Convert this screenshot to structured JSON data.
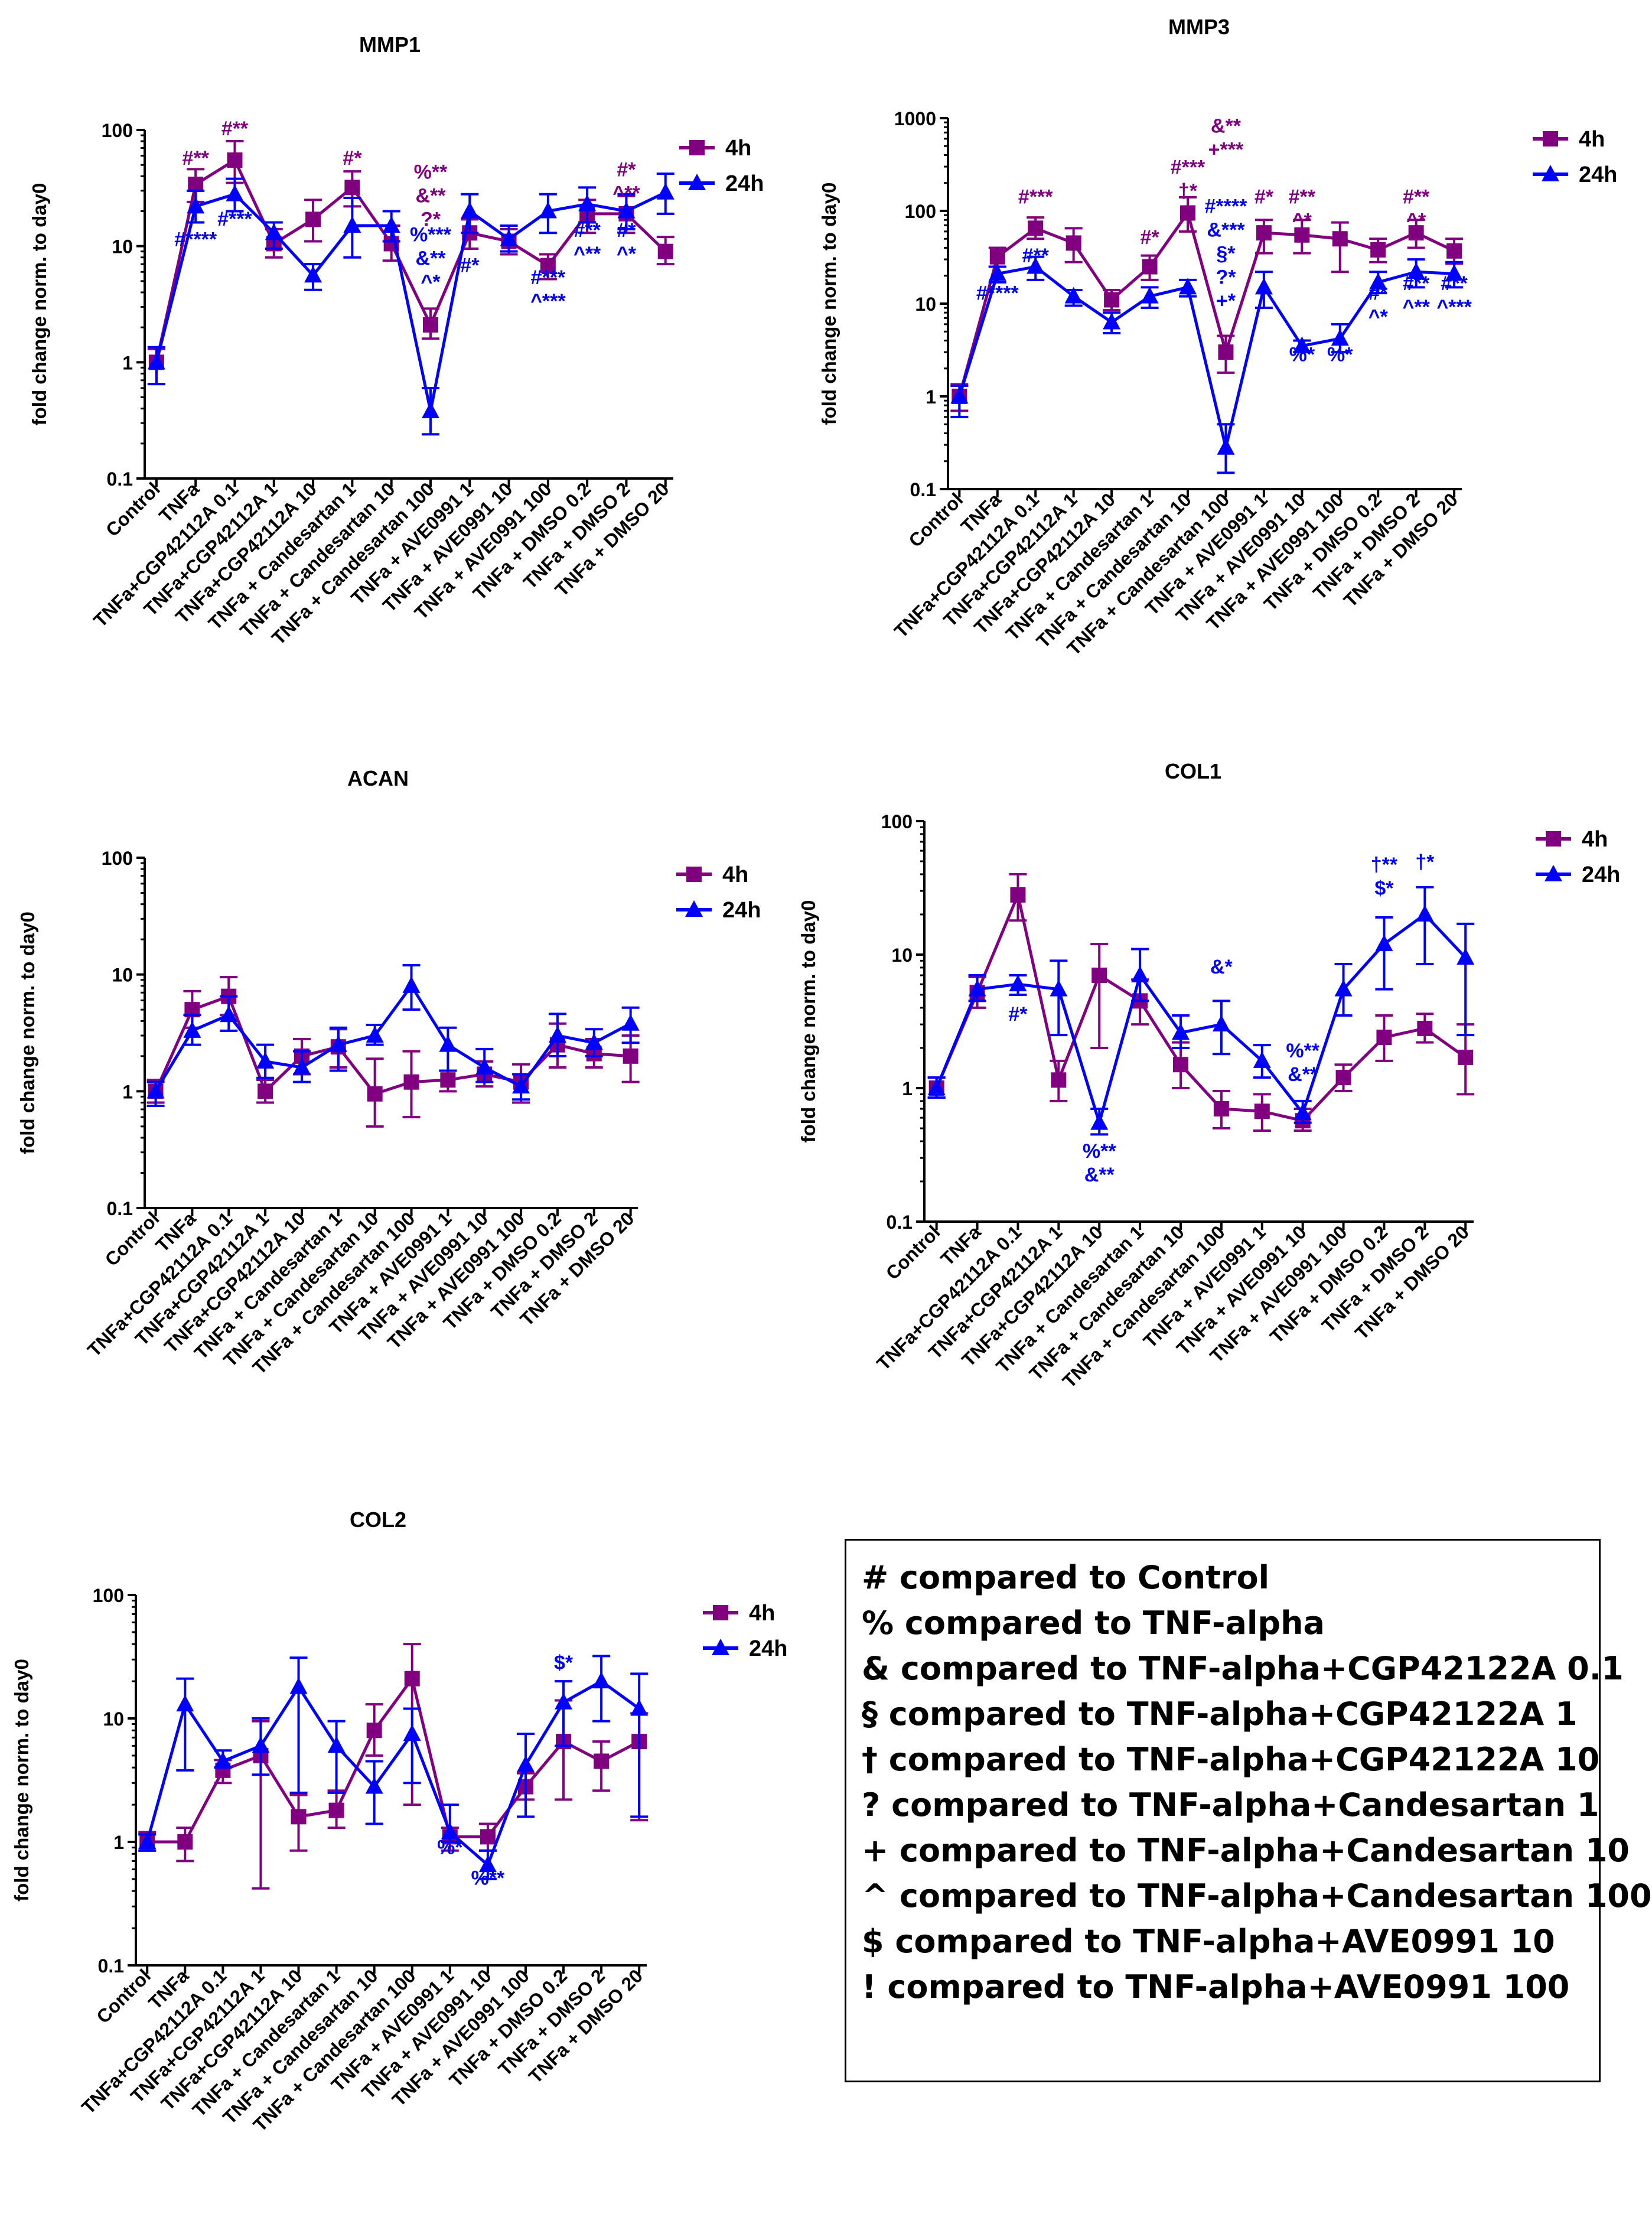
{
  "chart_data": [
    {
      "id": "mmp1",
      "type": "line",
      "title": "MMP1",
      "ylabel": "fold change norm. to day0",
      "yscale": "log",
      "ylim": [
        0.1,
        100
      ],
      "yticks": [
        "0.1",
        "1",
        "10",
        "100"
      ],
      "categories": [
        "Control",
        "TNFa",
        "TNFa+CGP42112A 0.1",
        "TNFa+CGP42112A 1",
        "TNFa+CGP42112A 10",
        "TNFa + Candesartan 1",
        "TNFa + Candesartan 10",
        "TNFa + Candesartan 100",
        "TNFa + AVE0991 1",
        "TNFa + AVE0991 10",
        "TNFa + AVE0991 100",
        "TNFa + DMSO 0.2",
        "TNFa + DMSO 2",
        "TNFa + DMSO 20"
      ],
      "legend": [
        "4h",
        "24h"
      ],
      "series": [
        {
          "name": "4h",
          "color": "#800080",
          "marker": "square",
          "values": [
            1.0,
            34,
            55,
            10.5,
            17,
            32,
            10.5,
            2.1,
            13,
            11,
            6.8,
            19,
            19,
            9
          ],
          "lower": [
            0.65,
            24,
            35,
            8,
            11,
            22,
            7.5,
            1.6,
            9.5,
            8.5,
            5.2,
            13,
            13,
            7
          ],
          "upper": [
            1.3,
            46,
            80,
            14,
            25,
            44,
            15,
            2.9,
            17,
            14,
            8.5,
            25,
            27,
            12
          ]
        },
        {
          "name": "24h",
          "color": "#0000ff",
          "marker": "triangle",
          "values": [
            1.0,
            22,
            28,
            13,
            5.6,
            15,
            15,
            0.38,
            20,
            11.5,
            20,
            23,
            20,
            29
          ],
          "lower": [
            0.65,
            16,
            20,
            9.5,
            4.2,
            8,
            11,
            0.24,
            13,
            9,
            13,
            16,
            14,
            19
          ],
          "upper": [
            1.35,
            30,
            38,
            16,
            7,
            26,
            20,
            0.6,
            28,
            15,
            28,
            32,
            28,
            42
          ]
        }
      ],
      "annotations": [
        {
          "cat": 1,
          "y": 50,
          "text": "#**",
          "color": "#800080"
        },
        {
          "cat": 2,
          "y": 90,
          "text": "#**",
          "color": "#800080"
        },
        {
          "cat": 2,
          "y": 15,
          "text": "#***",
          "color": "#0000ff"
        },
        {
          "cat": 1,
          "y": 10,
          "text": "#****",
          "color": "#0000ff"
        },
        {
          "cat": 5,
          "y": 50,
          "text": "#*",
          "color": "#800080"
        },
        {
          "cat": 7,
          "lines": [
            "%**",
            "&**",
            "?*"
          ],
          "y": 38,
          "color": "#800080"
        },
        {
          "cat": 7,
          "lines": [
            "%***",
            "&**",
            "^*"
          ],
          "y": 11,
          "color": "#0000ff"
        },
        {
          "cat": 8,
          "y": 6,
          "text": "#*",
          "color": "#0000ff"
        },
        {
          "cat": 10,
          "lines": [
            "#***",
            "^***"
          ],
          "y": 4.7,
          "color": "#0000ff"
        },
        {
          "cat": 11,
          "lines": [
            "#**",
            "^**"
          ],
          "y": 12,
          "color": "#0000ff"
        },
        {
          "cat": 12,
          "lines": [
            "#*",
            "^**"
          ],
          "y": 40,
          "color": "#800080"
        },
        {
          "cat": 12,
          "lines": [
            "#*",
            "^*"
          ],
          "y": 12,
          "color": "#0000ff"
        }
      ]
    },
    {
      "id": "mmp3",
      "type": "line",
      "title": "MMP3",
      "ylabel": "fold change norm. to day0",
      "yscale": "log",
      "ylim": [
        0.1,
        1000
      ],
      "yticks": [
        "0.1",
        "1",
        "10",
        "100",
        "1000"
      ],
      "categories": [
        "Control",
        "TNFa",
        "TNFa+CGP42112A 0.1",
        "TNFa+CGP42112A 1",
        "TNFa+CGP42112A 10",
        "TNFa + Candesartan 1",
        "TNFa + Candesartan 10",
        "TNFa + Candesartan 100",
        "TNFa + AVE0991 1",
        "TNFa + AVE0991 10",
        "TNFa + AVE0991 100",
        "TNFa + DMSO 0.2",
        "TNFa + DMSO 2",
        "TNFa + DMSO 20"
      ],
      "legend": [
        "4h",
        "24h"
      ],
      "series": [
        {
          "name": "4h",
          "color": "#800080",
          "marker": "square",
          "values": [
            1.0,
            32,
            65,
            45,
            11,
            25,
            95,
            3,
            58,
            55,
            50,
            38,
            58,
            37
          ],
          "lower": [
            0.7,
            25,
            50,
            28,
            8.5,
            18,
            60,
            1.8,
            35,
            35,
            22,
            28,
            40,
            27
          ],
          "upper": [
            1.35,
            40,
            85,
            65,
            14,
            33,
            140,
            4.5,
            80,
            80,
            75,
            50,
            80,
            50
          ]
        },
        {
          "name": "24h",
          "color": "#0000ff",
          "marker": "triangle",
          "values": [
            1.0,
            21,
            25,
            12,
            6.3,
            12,
            15,
            0.28,
            15,
            3.5,
            4.2,
            17,
            22,
            21
          ],
          "lower": [
            0.6,
            17,
            18,
            9.5,
            4.8,
            9,
            12,
            0.15,
            9,
            3,
            3,
            13,
            15,
            15
          ],
          "upper": [
            1.3,
            25,
            32,
            14,
            8,
            15,
            18,
            0.5,
            22,
            4,
            6,
            22,
            30,
            28
          ]
        }
      ],
      "annotations": [
        {
          "cat": 2,
          "y": 120,
          "text": "#***",
          "color": "#800080"
        },
        {
          "cat": 2,
          "y": 28,
          "text": "#**",
          "color": "#0000ff"
        },
        {
          "cat": 1,
          "y": 11,
          "text": "#****",
          "color": "#0000ff"
        },
        {
          "cat": 5,
          "y": 44,
          "text": "#*",
          "color": "#800080"
        },
        {
          "cat": 6,
          "lines": [
            "#***",
            "†*"
          ],
          "y": 250,
          "color": "#800080"
        },
        {
          "cat": 7,
          "lines": [
            "&**",
            "+***"
          ],
          "y": 700,
          "color": "#800080"
        },
        {
          "cat": 7,
          "lines": [
            "#****",
            "&***",
            "§*",
            "?*",
            "+*"
          ],
          "y": 95,
          "color": "#0000ff"
        },
        {
          "cat": 8,
          "y": 120,
          "text": "#*",
          "color": "#800080"
        },
        {
          "cat": 9,
          "lines": [
            "#**",
            "^*"
          ],
          "y": 120,
          "color": "#800080"
        },
        {
          "cat": 9,
          "y": 2.4,
          "text": "%*",
          "color": "#0000ff"
        },
        {
          "cat": 10,
          "y": 2.4,
          "text": "%*",
          "color": "#0000ff"
        },
        {
          "cat": 11,
          "lines": [
            "#*",
            "^*"
          ],
          "y": 11,
          "color": "#0000ff"
        },
        {
          "cat": 12,
          "lines": [
            "#**",
            "^*"
          ],
          "y": 120,
          "color": "#800080"
        },
        {
          "cat": 12,
          "lines": [
            "#**",
            "^**"
          ],
          "y": 14,
          "color": "#0000ff"
        },
        {
          "cat": 13,
          "lines": [
            "#**",
            "^***"
          ],
          "y": 14,
          "color": "#0000ff"
        }
      ]
    },
    {
      "id": "acan",
      "type": "line",
      "title": "ACAN",
      "ylabel": "fold change norm. to day0",
      "yscale": "log",
      "ylim": [
        0.1,
        100
      ],
      "yticks": [
        "0.1",
        "1",
        "10",
        "100"
      ],
      "categories": [
        "Control",
        "TNFa",
        "TNFa+CGP42112A 0.1",
        "TNFa+CGP42112A 1",
        "TNFa+CGP42112A 10",
        "TNFa + Candesartan 1",
        "TNFa + Candesartan 10",
        "TNFa + Candesartan 100",
        "TNFa + AVE0991 1",
        "TNFa + AVE0991 10",
        "TNFa + AVE0991 100",
        "TNFa + DMSO 0.2",
        "TNFa + DMSO 2",
        "TNFa + DMSO 20"
      ],
      "legend": [
        "4h",
        "24h"
      ],
      "series": [
        {
          "name": "4h",
          "color": "#800080",
          "marker": "square",
          "values": [
            1.0,
            5.0,
            6.5,
            1.0,
            2.0,
            2.4,
            0.95,
            1.2,
            1.25,
            1.4,
            1.2,
            2.5,
            2.1,
            2.0
          ],
          "lower": [
            0.8,
            3.5,
            4.5,
            0.8,
            1.4,
            1.6,
            0.5,
            0.6,
            1.0,
            1.1,
            0.8,
            1.6,
            1.6,
            1.2
          ],
          "upper": [
            1.25,
            7.2,
            9.5,
            1.25,
            2.8,
            3.4,
            1.9,
            2.2,
            1.5,
            1.8,
            1.7,
            3.8,
            2.8,
            3.0
          ]
        },
        {
          "name": "24h",
          "color": "#0000ff",
          "marker": "triangle",
          "values": [
            1.0,
            3.3,
            4.5,
            1.8,
            1.6,
            2.5,
            3.0,
            8.0,
            2.5,
            1.6,
            1.1,
            3.0,
            2.6,
            3.8
          ],
          "lower": [
            0.75,
            2.5,
            3.3,
            1.3,
            1.2,
            1.5,
            2.5,
            5.0,
            1.5,
            1.2,
            0.85,
            2.0,
            2.0,
            2.6
          ],
          "upper": [
            1.2,
            4.5,
            6.5,
            2.5,
            2.2,
            3.5,
            3.7,
            12,
            3.5,
            2.3,
            1.4,
            4.6,
            3.4,
            5.2
          ]
        }
      ],
      "annotations": []
    },
    {
      "id": "col1",
      "type": "line",
      "title": "COL1",
      "ylabel": "fold change norm. to day0",
      "yscale": "log",
      "ylim": [
        0.1,
        100
      ],
      "yticks": [
        "0.1",
        "1",
        "10",
        "100"
      ],
      "categories": [
        "Control",
        "TNFa",
        "TNFa+CGP42112A 0.1",
        "TNFa+CGP42112A 1",
        "TNFa+CGP42112A 10",
        "TNFa + Candesartan 1",
        "TNFa + Candesartan 10",
        "TNFa + Candesartan 100",
        "TNFa + AVE0991 1",
        "TNFa + AVE0991 10",
        "TNFa + AVE0991 100",
        "TNFa + DMSO 0.2",
        "TNFa + DMSO 2",
        "TNFa + DMSO 20"
      ],
      "legend": [
        "4h",
        "24h"
      ],
      "series": [
        {
          "name": "4h",
          "color": "#800080",
          "marker": "square",
          "values": [
            1.0,
            5.2,
            28,
            1.15,
            7.0,
            4.5,
            1.5,
            0.7,
            0.67,
            0.57,
            1.2,
            2.4,
            2.8,
            1.7
          ],
          "lower": [
            0.85,
            4.0,
            18,
            0.8,
            2.0,
            3.0,
            1.0,
            0.5,
            0.48,
            0.48,
            0.95,
            1.6,
            2.2,
            0.9
          ],
          "upper": [
            1.2,
            6.8,
            40,
            1.6,
            12,
            6.5,
            2.2,
            0.95,
            0.9,
            0.7,
            1.5,
            3.5,
            3.6,
            3.0
          ]
        },
        {
          "name": "24h",
          "color": "#0000ff",
          "marker": "triangle",
          "values": [
            1.0,
            5.5,
            6.0,
            5.5,
            0.55,
            7.0,
            2.6,
            3.0,
            1.6,
            0.65,
            5.5,
            12,
            20,
            9.5
          ],
          "lower": [
            0.85,
            4.5,
            5.0,
            2.5,
            0.45,
            4.5,
            2.0,
            1.8,
            1.2,
            0.55,
            3.5,
            5.5,
            8.5,
            2.5
          ],
          "upper": [
            1.2,
            7.0,
            7.0,
            9.0,
            0.7,
            11,
            3.5,
            4.5,
            2.1,
            0.8,
            8.5,
            19,
            32,
            17
          ]
        }
      ],
      "annotations": [
        {
          "cat": 2,
          "y": 3.2,
          "text": "#*",
          "color": "#0000ff"
        },
        {
          "cat": 4,
          "lines": [
            "%**",
            "&**"
          ],
          "y": 0.3,
          "color": "#0000ff"
        },
        {
          "cat": 7,
          "y": 7.2,
          "text": "&*",
          "color": "#0000ff"
        },
        {
          "cat": 9,
          "lines": [
            "%**",
            "&**"
          ],
          "y": 1.7,
          "color": "#0000ff"
        },
        {
          "cat": 11,
          "lines": [
            "†**",
            "$*"
          ],
          "y": 42,
          "color": "#0000ff"
        },
        {
          "cat": 12,
          "y": 44,
          "text": "†*",
          "color": "#0000ff"
        }
      ]
    },
    {
      "id": "col2",
      "type": "line",
      "title": "COL2",
      "ylabel": "fold change norm. to day0",
      "yscale": "log",
      "ylim": [
        0.1,
        100
      ],
      "yticks": [
        "0.1",
        "1",
        "10",
        "100"
      ],
      "categories": [
        "Control",
        "TNFa",
        "TNFa+CGP42112A 0.1",
        "TNFa+CGP42112A 1",
        "TNFa+CGP42112A 10",
        "TNFa + Candesartan 1",
        "TNFa + Candesartan 10",
        "TNFa + Candesartan 100",
        "TNFa + AVE0991 1",
        "TNFa + AVE0991 10",
        "TNFa + AVE0991 100",
        "TNFa + DMSO 0.2",
        "TNFa + DMSO 2",
        "TNFa + DMSO 20"
      ],
      "legend": [
        "4h",
        "24h"
      ],
      "series": [
        {
          "name": "4h",
          "color": "#800080",
          "marker": "square",
          "values": [
            1.0,
            1.0,
            3.8,
            5.0,
            1.6,
            1.8,
            8.0,
            21,
            1.1,
            1.1,
            2.8,
            6.5,
            4.5,
            6.5
          ],
          "lower": [
            0.85,
            0.7,
            3.0,
            0.42,
            0.85,
            1.3,
            5.0,
            2.0,
            0.85,
            0.85,
            2.2,
            2.2,
            2.6,
            1.5
          ],
          "upper": [
            1.2,
            1.3,
            4.6,
            9.5,
            2.4,
            2.6,
            13,
            40,
            1.3,
            1.4,
            3.6,
            14,
            6.5,
            11
          ]
        },
        {
          "name": "24h",
          "color": "#0000ff",
          "marker": "triangle",
          "values": [
            1.0,
            13,
            4.5,
            6.0,
            18,
            6.0,
            2.8,
            7.5,
            1.2,
            0.65,
            4.2,
            13.5,
            20,
            12
          ],
          "lower": [
            0.85,
            3.8,
            4.0,
            3.5,
            2.5,
            2.5,
            1.4,
            3.0,
            1.0,
            0.5,
            1.6,
            6.0,
            9.5,
            1.6
          ],
          "upper": [
            1.15,
            21,
            5.5,
            10,
            31,
            9.5,
            4.5,
            12,
            2.0,
            0.85,
            7.5,
            20,
            32,
            23
          ]
        }
      ],
      "annotations": [
        {
          "cat": 8,
          "y": 0.8,
          "text": "%*",
          "color": "#0000ff"
        },
        {
          "cat": 9,
          "y": 0.45,
          "text": "%**",
          "color": "#0000ff"
        },
        {
          "cat": 11,
          "y": 25,
          "text": "$*",
          "color": "#0000ff"
        }
      ]
    }
  ],
  "legend_box": {
    "lines": [
      "# compared to Control",
      "% compared to TNF-alpha",
      "& compared to TNF-alpha+CGP42122A 0.1",
      "§ compared to TNF-alpha+CGP42122A 1",
      "† compared to TNF-alpha+CGP42122A 10",
      "? compared to TNF-alpha+Candesartan 1",
      "+ compared to TNF-alpha+Candesartan 10",
      "^ compared to TNF-alpha+Candesartan 100",
      "$ compared to TNF-alpha+AVE0991 10",
      "! compared to TNF-alpha+AVE0991 100"
    ]
  }
}
